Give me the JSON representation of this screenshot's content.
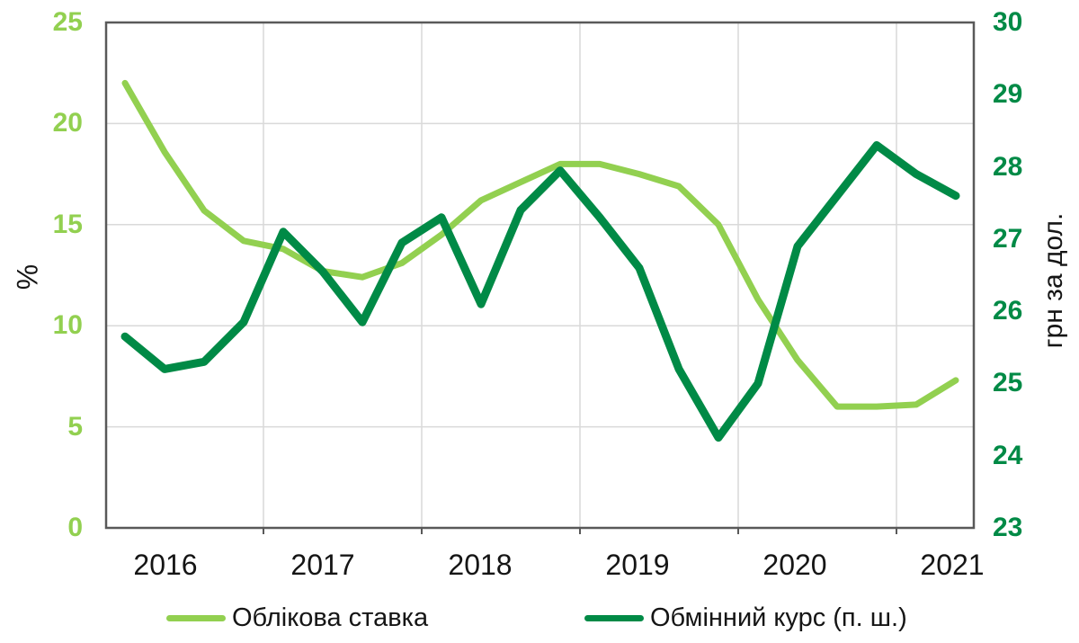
{
  "chart_data": {
    "type": "line",
    "frequency": "quarterly",
    "x": [
      "2016 Q1",
      "2016 Q2",
      "2016 Q3",
      "2016 Q4",
      "2017 Q1",
      "2017 Q2",
      "2017 Q3",
      "2017 Q4",
      "2018 Q1",
      "2018 Q2",
      "2018 Q3",
      "2018 Q4",
      "2019 Q1",
      "2019 Q2",
      "2019 Q3",
      "2019 Q4",
      "2020 Q1",
      "2020 Q2",
      "2020 Q3",
      "2020 Q4",
      "2021 Q1",
      "2021 Q2"
    ],
    "x_numeric_start": 2016.125,
    "x_numeric_step": 0.25,
    "series": [
      {
        "name": "Облікова ставка",
        "axis": "left",
        "color": "#92d050",
        "values": [
          22.0,
          18.6,
          15.7,
          14.2,
          13.8,
          12.7,
          12.4,
          13.1,
          14.5,
          16.2,
          17.1,
          18.0,
          18.0,
          17.5,
          16.9,
          15.0,
          11.3,
          8.3,
          6.0,
          6.0,
          6.1,
          7.3
        ]
      },
      {
        "name": "Обмінний курс (п. ш.)",
        "axis": "right",
        "color": "#008a46",
        "values": [
          25.65,
          25.2,
          25.3,
          25.85,
          27.1,
          26.55,
          25.85,
          26.95,
          27.3,
          26.1,
          27.4,
          27.95,
          27.3,
          26.6,
          25.2,
          24.25,
          25.0,
          26.9,
          27.6,
          28.3,
          27.9,
          27.6
        ]
      }
    ],
    "left_axis": {
      "title": "%",
      "min": 0,
      "max": 25,
      "step": 5,
      "tick_labels": [
        "25",
        "20",
        "15",
        "10",
        "5",
        "0"
      ],
      "color": "#92d050"
    },
    "right_axis": {
      "title": "грн за дол.",
      "min": 23,
      "max": 30,
      "step": 1,
      "tick_labels": [
        "30",
        "29",
        "28",
        "27",
        "26",
        "25",
        "24",
        "23"
      ],
      "color": "#008a46"
    },
    "x_axis": {
      "tick_labels": [
        "2016",
        "2017",
        "2018",
        "2019",
        "2020",
        "2021"
      ],
      "gridline_years": [
        2017,
        2018,
        2019,
        2020,
        2021
      ]
    },
    "grid": true,
    "legend_position": "bottom"
  },
  "styles": {
    "grid_color": "#d9d9d9",
    "border_color": "#595959",
    "background": "#ffffff"
  }
}
